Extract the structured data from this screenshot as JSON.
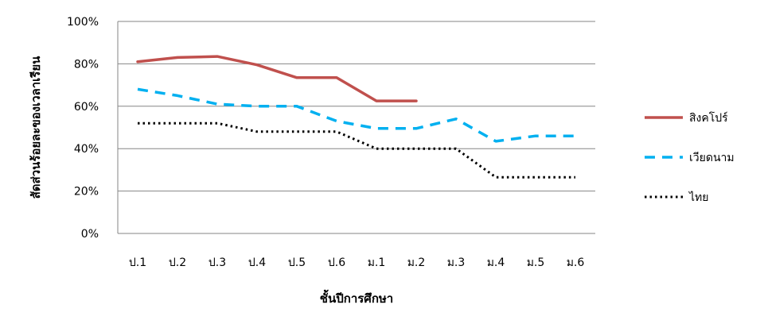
{
  "chart_data": {
    "type": "line",
    "title": "",
    "xlabel": "ชั้นปีการศึกษา",
    "ylabel": "สัดส่วนร้อยละของเวลาเรียน",
    "categories": [
      "ป.1",
      "ป.2",
      "ป.3",
      "ป.4",
      "ป.5",
      "ป.6",
      "ม.1",
      "ม.2",
      "ม.3",
      "ม.4",
      "ม.5",
      "ม.6"
    ],
    "ylim": [
      0,
      100
    ],
    "yticks": [
      "0%",
      "20%",
      "40%",
      "60%",
      "80%",
      "100%"
    ],
    "grid": true,
    "legend_position": "right",
    "series": [
      {
        "name": "สิงคโปร์",
        "color": "#c0504d",
        "style": "solid",
        "values": [
          81,
          83,
          83.5,
          79.5,
          73.5,
          73.5,
          62.5,
          62.5,
          null,
          null,
          null,
          null
        ]
      },
      {
        "name": "เวียดนาม",
        "color": "#00b0f0",
        "style": "dashed",
        "values": [
          68,
          65,
          61,
          60,
          60,
          53,
          49.5,
          49.5,
          54,
          43.5,
          46,
          46
        ]
      },
      {
        "name": "ไทย",
        "color": "#000000",
        "style": "dotted",
        "values": [
          52,
          52,
          52,
          48,
          48,
          48,
          40,
          40,
          40,
          26.5,
          26.5,
          26.5
        ]
      }
    ]
  }
}
